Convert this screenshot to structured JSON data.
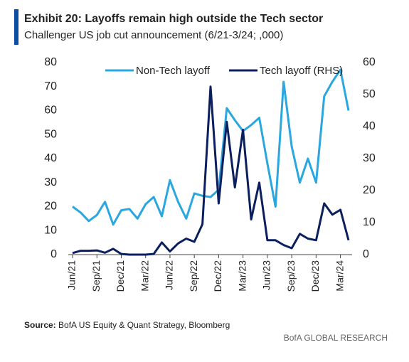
{
  "chart_data": {
    "type": "line",
    "title": "Exhibit 20: Layoffs remain high outside the Tech sector",
    "subtitle": "Challenger US job cut announcement (6/21-3/24; ,000)",
    "categories": [
      "Jun/21",
      null,
      null,
      "Sep/21",
      null,
      null,
      "Dec/21",
      null,
      null,
      "Mar/22",
      null,
      null,
      "Jun/22",
      null,
      null,
      "Sep/22",
      null,
      null,
      "Dec/22",
      null,
      null,
      "Mar/23",
      null,
      null,
      "Jun/23",
      null,
      null,
      "Sep/23",
      null,
      null,
      "Dec/23",
      null,
      null,
      "Mar/24",
      null
    ],
    "series": [
      {
        "name": "Non-Tech layoff",
        "color": "#2aa7df",
        "values": [
          20,
          17.5,
          14,
          16.5,
          22,
          12.5,
          18.5,
          19,
          15,
          21,
          24,
          16,
          31,
          22,
          15,
          25.5,
          24.5,
          24,
          27,
          61,
          56,
          51.5,
          54,
          57,
          38,
          20,
          72,
          45,
          30,
          40,
          30,
          66,
          72,
          77,
          60
        ]
      },
      {
        "name": "Tech layoff (RHS)",
        "color": "#0b1f5e",
        "axis": "y2",
        "values": [
          0.5,
          1.2,
          1.2,
          1.3,
          0.6,
          1.8,
          0.2,
          0,
          0,
          0,
          0.2,
          3.8,
          1,
          3.5,
          5,
          4,
          9.5,
          52.5,
          16,
          41.5,
          21,
          39,
          11,
          22.5,
          4.5,
          4.5,
          3,
          2,
          6.5,
          5,
          4.5,
          16,
          12.5,
          14,
          4.5
        ]
      }
    ],
    "ylim": [
      0,
      80
    ],
    "yticks": [
      0,
      10,
      20,
      30,
      40,
      50,
      60,
      70,
      80
    ],
    "y2lim": [
      0,
      60
    ],
    "y2ticks": [
      0,
      10,
      20,
      30,
      40,
      50,
      60
    ],
    "legend": "top",
    "source_label": "Source:",
    "source": "BofA US Equity & Quant Strategy, Bloomberg",
    "footer": "BofA GLOBAL RESEARCH"
  }
}
